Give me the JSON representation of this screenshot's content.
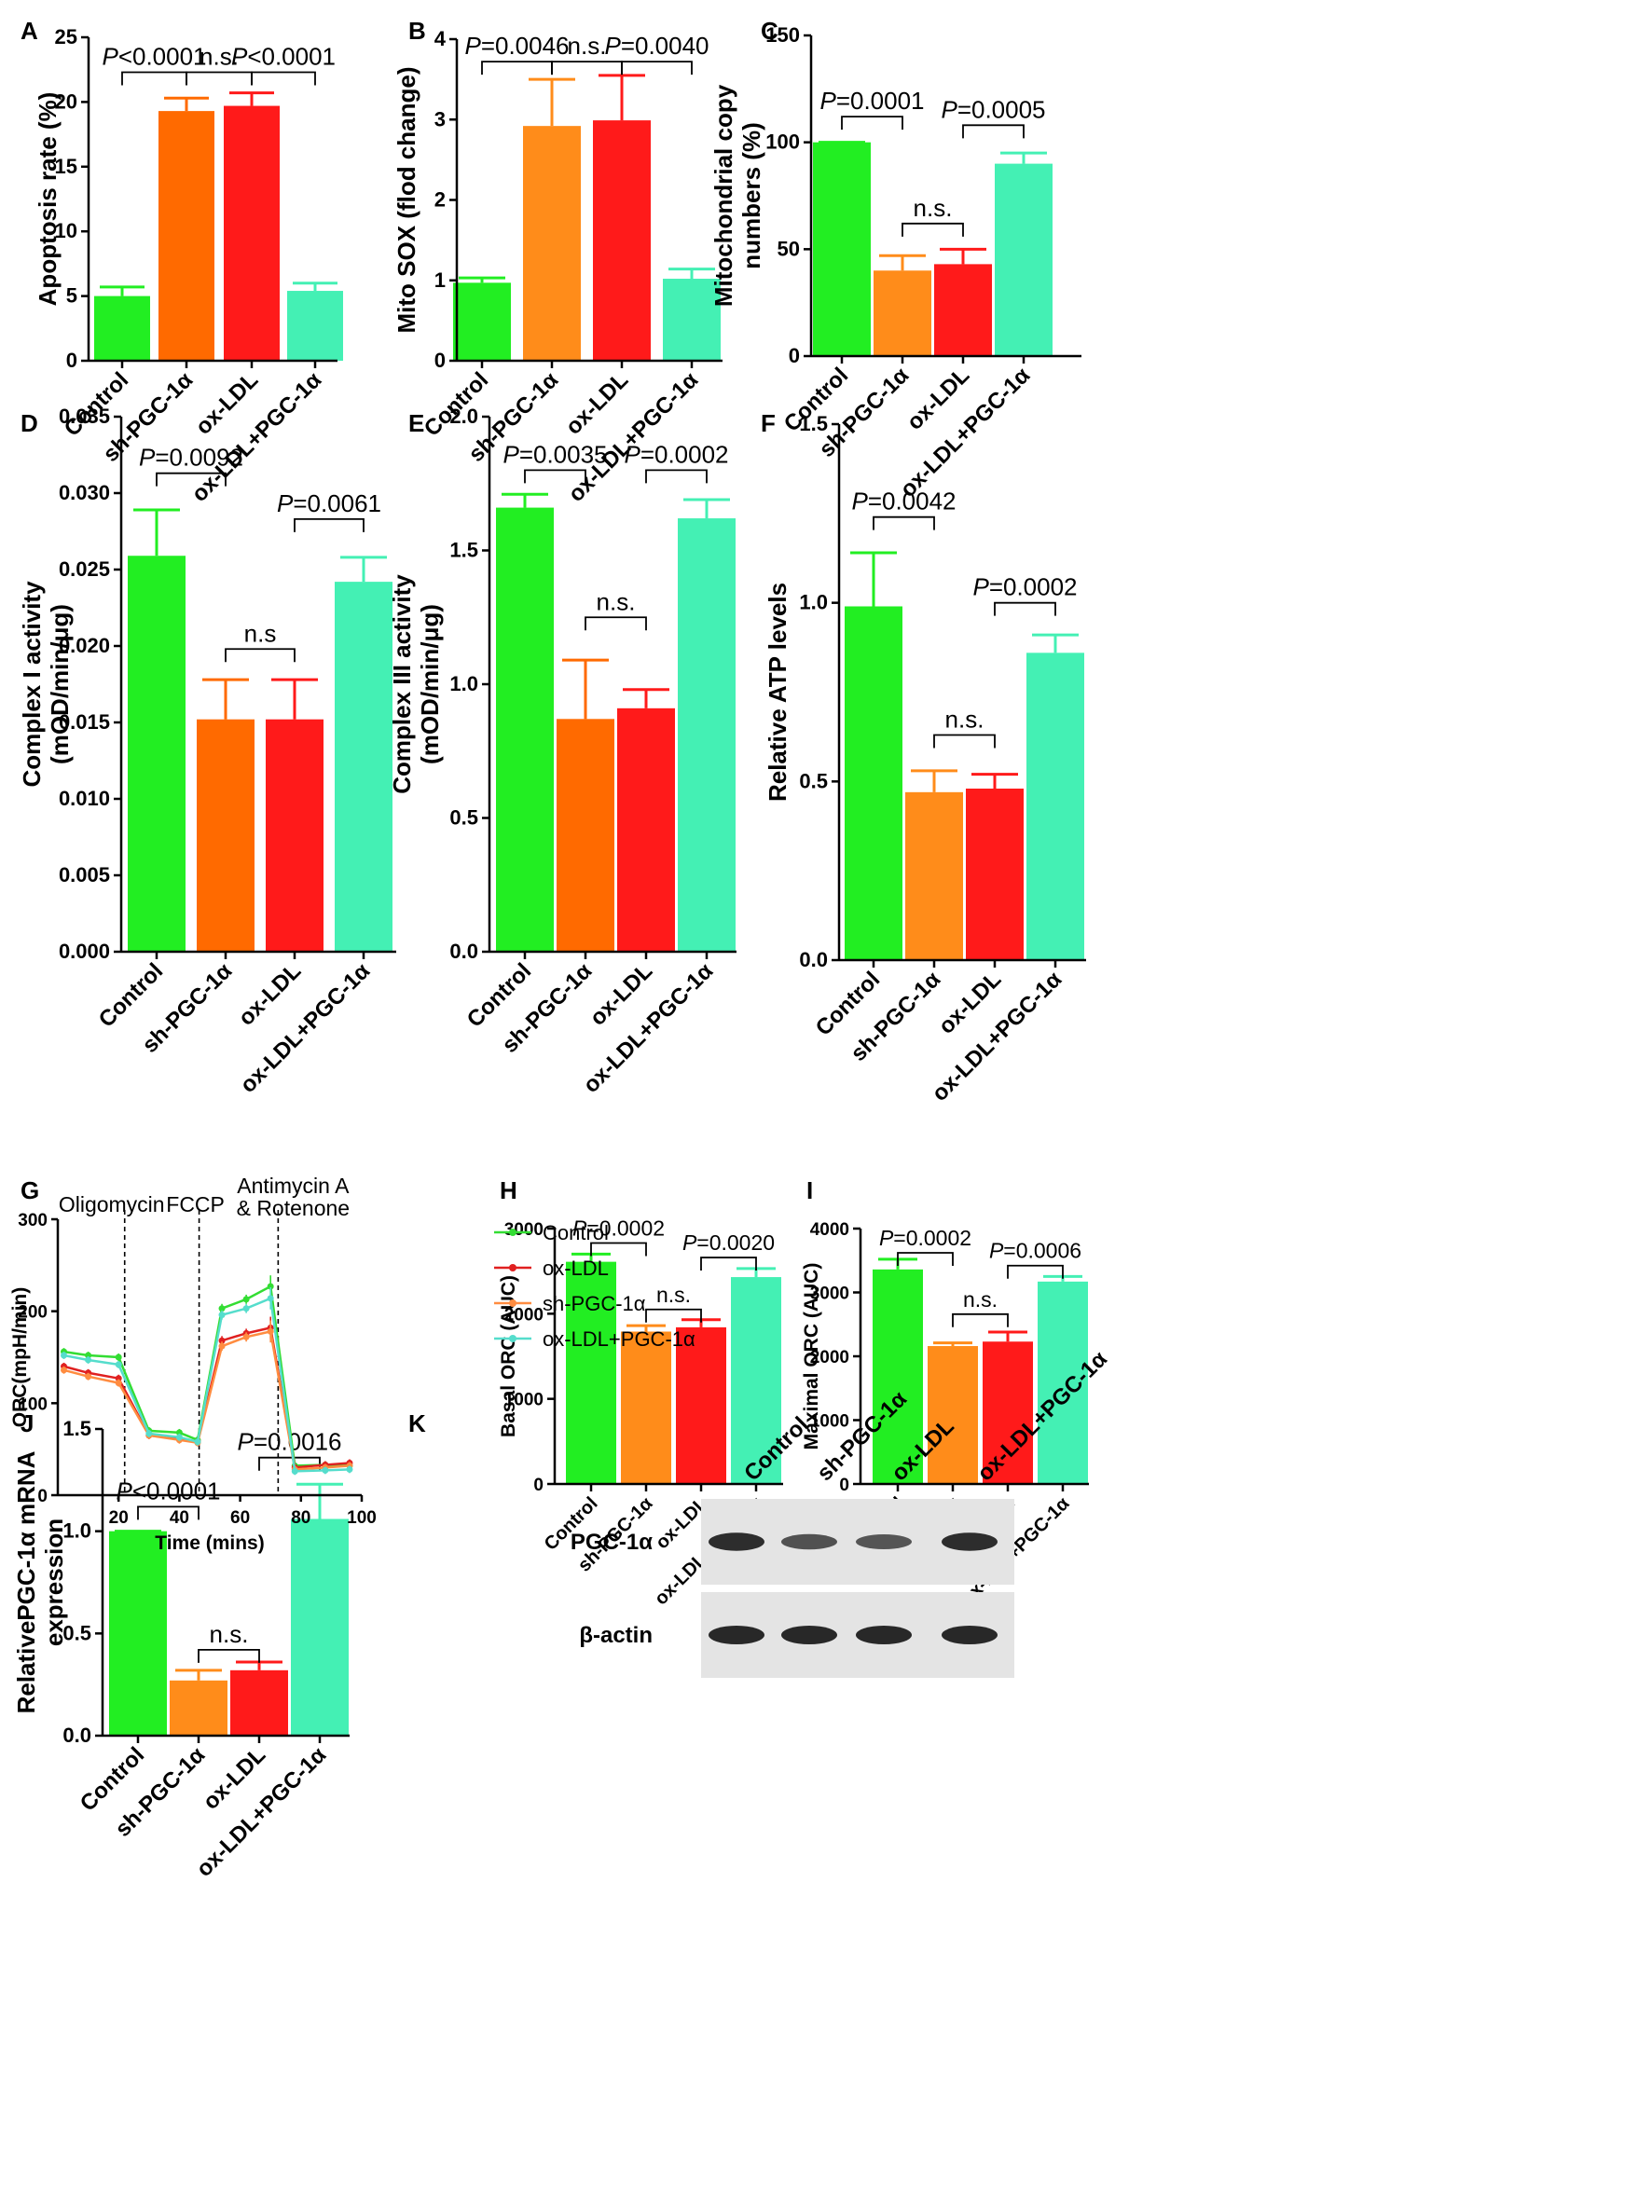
{
  "figure": {
    "colors": {
      "control": "#22ee22",
      "sh": "#ff8c1a",
      "sh_dark": "#ff6a00",
      "oxldl": "#ff1a1a",
      "rescue": "#44f0b4",
      "line_control": "#33dd33",
      "line_oxldl": "#e02020",
      "line_sh": "#ff8c40",
      "line_rescue": "#55ddcc"
    },
    "panels": [
      "A",
      "B",
      "C",
      "D",
      "E",
      "F",
      "G",
      "H",
      "I",
      "J",
      "K"
    ]
  },
  "chart_data": [
    {
      "id": "A",
      "type": "bar",
      "ylabel": "Apoptosis rate (%)",
      "ylim": [
        0,
        25
      ],
      "yticks": [
        "0",
        "5",
        "10",
        "15",
        "20",
        "25"
      ],
      "categories": [
        "Control",
        "sh-PGC-1α",
        "ox-LDL",
        "ox-LDL+PGC-1α"
      ],
      "values": [
        5.0,
        19.3,
        19.7,
        5.4
      ],
      "errors": [
        0.7,
        1.0,
        1.0,
        0.6
      ],
      "colors": [
        "#22ee22",
        "#ff6a00",
        "#ff1a1a",
        "#44f0b4"
      ],
      "annotations": [
        {
          "text": "P<0.0001",
          "from": 0,
          "to": 1,
          "level": 22.3
        },
        {
          "text": "n.s.",
          "from": 1,
          "to": 2,
          "level": 22.3
        },
        {
          "text": "P<0.0001",
          "from": 2,
          "to": 3,
          "level": 22.3
        }
      ]
    },
    {
      "id": "B",
      "type": "bar",
      "ylabel": "Mito SOX (flod change)",
      "ylim": [
        0,
        4
      ],
      "yticks": [
        "0",
        "1",
        "2",
        "3",
        "4"
      ],
      "categories": [
        "Control",
        "sh-PGC-1α",
        "ox-LDL",
        "ox-LDL+PGC-1α"
      ],
      "values": [
        0.97,
        2.92,
        2.99,
        1.02
      ],
      "errors": [
        0.06,
        0.58,
        0.56,
        0.12
      ],
      "colors": [
        "#22ee22",
        "#ff8c1a",
        "#ff1a1a",
        "#44f0b4"
      ],
      "annotations": [
        {
          "text": "P=0.0046",
          "from": 0,
          "to": 1,
          "level": 3.72
        },
        {
          "text": "n.s.",
          "from": 1,
          "to": 2,
          "level": 3.72
        },
        {
          "text": "P=0.0040",
          "from": 2,
          "to": 3,
          "level": 3.72
        }
      ]
    },
    {
      "id": "C",
      "type": "bar",
      "ylabel": "Mitochondrial copy numbers (%)",
      "ylabel_lines": [
        "Mitochondrial copy",
        "numbers (%)"
      ],
      "ylim": [
        0,
        150
      ],
      "yticks": [
        "0",
        "50",
        "100",
        "150"
      ],
      "categories": [
        "Control",
        "sh-PGC-1α",
        "ox-LDL",
        "ox-LDL+PGC-1α"
      ],
      "values": [
        100,
        40,
        43,
        90
      ],
      "errors": [
        0,
        7,
        7,
        5
      ],
      "colors": [
        "#22ee22",
        "#ff8c1a",
        "#ff1a1a",
        "#44f0b4"
      ],
      "annotations": [
        {
          "text": "P=0.0001",
          "from": 0,
          "to": 1,
          "level": 112
        },
        {
          "text": "n.s.",
          "from": 1,
          "to": 2,
          "level": 62
        },
        {
          "text": "P=0.0005",
          "from": 2,
          "to": 3,
          "level": 108
        }
      ]
    },
    {
      "id": "D",
      "type": "bar",
      "ylabel": "Complex I activity (mOD/min/μg)",
      "ylabel_lines": [
        "Complex I activity",
        "(mOD/min/μg)"
      ],
      "ylim": [
        0,
        0.035
      ],
      "yticks": [
        "0.000",
        "0.005",
        "0.010",
        "0.015",
        "0.020",
        "0.025",
        "0.030",
        "0.035"
      ],
      "categories": [
        "Control",
        "sh-PGC-1α",
        "ox-LDL",
        "ox-LDL+PGC-1α"
      ],
      "values": [
        0.0259,
        0.0152,
        0.0152,
        0.0242
      ],
      "errors": [
        0.003,
        0.0026,
        0.0026,
        0.0016
      ],
      "colors": [
        "#22ee22",
        "#ff6a00",
        "#ff1a1a",
        "#44f0b4"
      ],
      "annotations": [
        {
          "text": "P=0.0092",
          "from": 0,
          "to": 1,
          "level": 0.0313
        },
        {
          "text": "n.s",
          "from": 1,
          "to": 2,
          "level": 0.0198
        },
        {
          "text": "P=0.0061",
          "from": 2,
          "to": 3,
          "level": 0.0283
        }
      ]
    },
    {
      "id": "E",
      "type": "bar",
      "ylabel": "Complex III activity (mOD/min/μg)",
      "ylabel_lines": [
        "Complex III activity",
        "(mOD/min/μg)"
      ],
      "ylim": [
        0,
        2.0
      ],
      "yticks": [
        "0.0",
        "0.5",
        "1.0",
        "1.5",
        "2.0"
      ],
      "categories": [
        "Control",
        "sh-PGC-1α",
        "ox-LDL",
        "ox-LDL+PGC-1α"
      ],
      "values": [
        1.66,
        0.87,
        0.91,
        1.62
      ],
      "errors": [
        0.05,
        0.22,
        0.07,
        0.07
      ],
      "colors": [
        "#22ee22",
        "#ff6a00",
        "#ff1a1a",
        "#44f0b4"
      ],
      "annotations": [
        {
          "text": "P=0.0035",
          "from": 0,
          "to": 1,
          "level": 1.8
        },
        {
          "text": "n.s.",
          "from": 1,
          "to": 2,
          "level": 1.25
        },
        {
          "text": "P=0.0002",
          "from": 2,
          "to": 3,
          "level": 1.8
        }
      ]
    },
    {
      "id": "F",
      "type": "bar",
      "ylabel": "Relative ATP levels",
      "ylim": [
        0,
        1.5
      ],
      "yticks": [
        "0.0",
        "0.5",
        "1.0",
        "1.5"
      ],
      "categories": [
        "Control",
        "sh-PGC-1α",
        "ox-LDL",
        "ox-LDL+PGC-1α"
      ],
      "values": [
        0.99,
        0.47,
        0.48,
        0.86
      ],
      "errors": [
        0.15,
        0.06,
        0.04,
        0.05
      ],
      "colors": [
        "#22ee22",
        "#ff8c1a",
        "#ff1a1a",
        "#44f0b4"
      ],
      "annotations": [
        {
          "text": "P=0.0042",
          "from": 0,
          "to": 1,
          "level": 1.24
        },
        {
          "text": "n.s.",
          "from": 1,
          "to": 2,
          "level": 0.63
        },
        {
          "text": "P=0.0002",
          "from": 2,
          "to": 3,
          "level": 1.0
        }
      ]
    },
    {
      "id": "G",
      "type": "line",
      "xlabel": "Time (mins)",
      "ylabel": "ORC(mpH/min)",
      "xlim": [
        0,
        100
      ],
      "ylim": [
        0,
        300
      ],
      "xticks": [
        "20",
        "40",
        "60",
        "80",
        "100"
      ],
      "yticks": [
        "0",
        "100",
        "200",
        "300"
      ],
      "x": [
        2,
        10,
        20,
        30,
        40,
        46,
        54,
        62,
        70,
        78,
        88,
        96
      ],
      "series": [
        {
          "name": "Control",
          "color": "#33dd33",
          "values": [
            156,
            152,
            150,
            70,
            68,
            60,
            203,
            213,
            227,
            32,
            33,
            32
          ]
        },
        {
          "name": "ox-LDL",
          "color": "#e02020",
          "values": [
            140,
            133,
            127,
            65,
            61,
            58,
            168,
            176,
            182,
            30,
            33,
            35
          ]
        },
        {
          "name": "sh-PGC-1α",
          "color": "#ff8c40",
          "values": [
            136,
            129,
            122,
            65,
            60,
            57,
            162,
            172,
            178,
            28,
            30,
            32
          ]
        },
        {
          "name": "ox-LDL+PGC-1α",
          "color": "#55ddcc",
          "values": [
            152,
            147,
            142,
            67,
            63,
            58,
            196,
            203,
            214,
            26,
            27,
            28
          ]
        }
      ],
      "errors": [
        4,
        4,
        4,
        4,
        4,
        4,
        5,
        5,
        12,
        4,
        4,
        4
      ],
      "events": [
        {
          "x": 22,
          "label_lines": [
            "Oligomycin"
          ]
        },
        {
          "x": 46.5,
          "label_lines": [
            "FCCP"
          ]
        },
        {
          "x": 72.5,
          "label_lines": [
            "Antimycin A",
            "& Rotenone"
          ]
        }
      ]
    },
    {
      "id": "H",
      "type": "bar",
      "ylabel": "Basal ORC (AUC)",
      "ylim": [
        0,
        3000
      ],
      "yticks": [
        "0",
        "1000",
        "2000",
        "3000"
      ],
      "categories": [
        "Control",
        "sh-PGC-1α",
        "ox-LDL",
        "ox-LDL+PGC-1α"
      ],
      "values": [
        2610,
        1790,
        1840,
        2430
      ],
      "errors": [
        90,
        70,
        90,
        100
      ],
      "colors": [
        "#22ee22",
        "#ff8c1a",
        "#ff1a1a",
        "#44f0b4"
      ],
      "annotations": [
        {
          "text": "P=0.0002",
          "from": 0,
          "to": 1,
          "level": 2830
        },
        {
          "text": "n.s.",
          "from": 1,
          "to": 2,
          "level": 2050
        },
        {
          "text": "P=0.0020",
          "from": 2,
          "to": 3,
          "level": 2660
        }
      ]
    },
    {
      "id": "I",
      "type": "bar",
      "ylabel": "Maximal ORC (AUC)",
      "ylim": [
        0,
        4000
      ],
      "yticks": [
        "0",
        "1000",
        "2000",
        "3000",
        "4000"
      ],
      "categories": [
        "Control",
        "sh-PGC-1α",
        "ox-LDL",
        "ox-LDL+PGC-1α"
      ],
      "values": [
        3360,
        2160,
        2230,
        3170
      ],
      "errors": [
        160,
        50,
        150,
        80
      ],
      "colors": [
        "#22ee22",
        "#ff8c1a",
        "#ff1a1a",
        "#44f0b4"
      ],
      "annotations": [
        {
          "text": "P=0.0002",
          "from": 0,
          "to": 1,
          "level": 3620
        },
        {
          "text": "n.s.",
          "from": 1,
          "to": 2,
          "level": 2660
        },
        {
          "text": "P=0.0006",
          "from": 2,
          "to": 3,
          "level": 3420
        }
      ]
    },
    {
      "id": "J",
      "type": "bar",
      "ylabel": "RelativePGC-1α mRNA expression",
      "ylabel_lines": [
        "RelativePGC-1α mRNA",
        "expression"
      ],
      "ylim": [
        0,
        1.5
      ],
      "yticks": [
        "0.0",
        "0.5",
        "1.0",
        "1.5"
      ],
      "categories": [
        "Control",
        "sh-PGC-1α",
        "ox-LDL",
        "ox-LDL+PGC-1α"
      ],
      "values": [
        1.0,
        0.27,
        0.32,
        1.06
      ],
      "errors": [
        0,
        0.05,
        0.04,
        0.17
      ],
      "colors": [
        "#22ee22",
        "#ff8c1a",
        "#ff1a1a",
        "#44f0b4"
      ],
      "annotations": [
        {
          "text": "P<0.0001",
          "from": 0,
          "to": 1,
          "level": 1.12
        },
        {
          "text": "n.s.",
          "from": 1,
          "to": 2,
          "level": 0.42
        },
        {
          "text": "P=0.0016",
          "from": 2,
          "to": 3,
          "level": 1.36
        }
      ]
    }
  ],
  "western_blot": {
    "id": "K",
    "lanes": [
      "Control",
      "sh-PGC-1α",
      "ox-LDL",
      "ox-LDL+PGC-1α"
    ],
    "rows": [
      {
        "label": "PGC-1α",
        "intensities": [
          0.95,
          0.55,
          0.5,
          0.95
        ]
      },
      {
        "label": "β-actin",
        "intensities": [
          1.0,
          1.0,
          1.0,
          1.0
        ]
      }
    ]
  }
}
